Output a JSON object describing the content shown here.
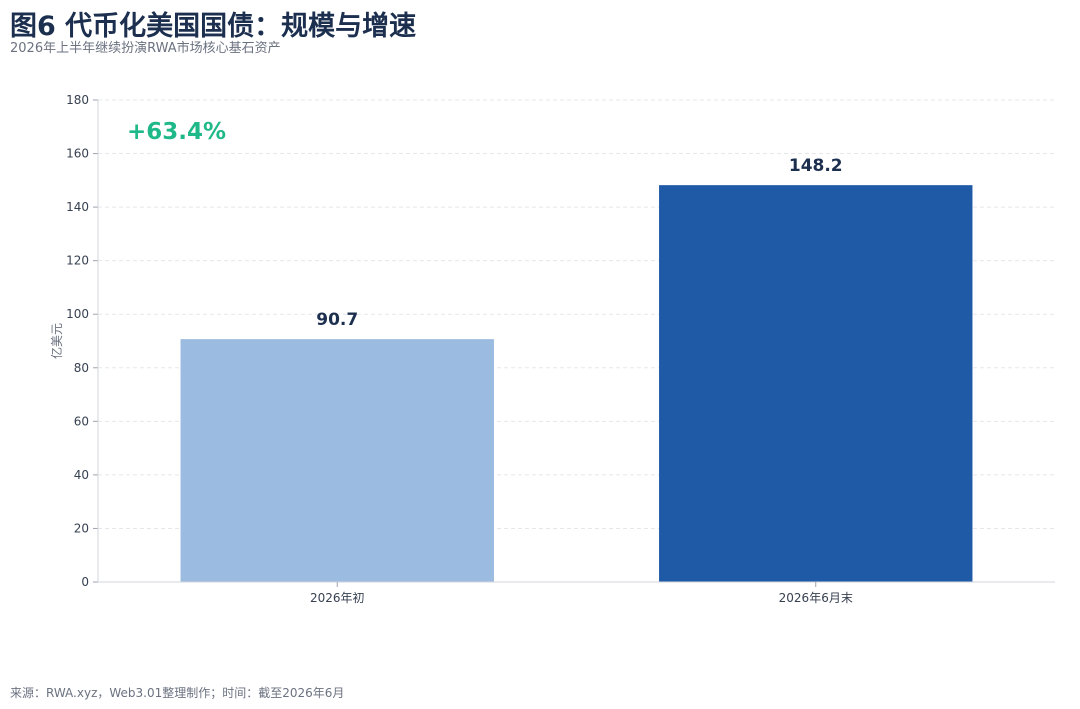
{
  "header": {
    "title": "图6 代币化美国国债：规模与增速",
    "subtitle": "2026年上半年继续扮演RWA市场核心基石资产"
  },
  "footer": {
    "source": "来源：RWA.xyz，Web3.01整理制作；时间：截至2026年6月"
  },
  "chart_data": {
    "type": "bar",
    "categories": [
      "2026年初",
      "2026年6月末"
    ],
    "values": [
      90.7,
      148.2
    ],
    "data_labels": [
      "90.7",
      "148.2"
    ],
    "bar_colors": [
      "#9bbce0",
      "#1f5aa6"
    ],
    "ylabel": "亿美元",
    "ylim": [
      0,
      180
    ],
    "yticks": [
      0,
      20,
      40,
      60,
      80,
      100,
      120,
      140,
      160,
      180
    ],
    "grid": true,
    "annotation": {
      "text": "+63.4%",
      "color": "#1fb888"
    }
  }
}
